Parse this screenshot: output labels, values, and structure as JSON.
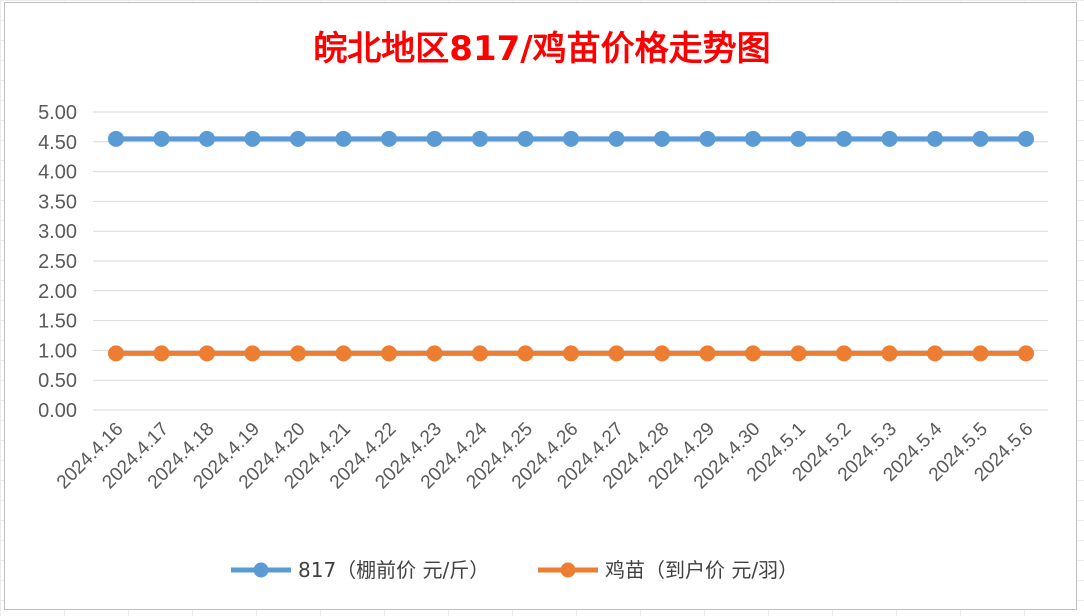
{
  "chart_data": {
    "type": "line",
    "title": "皖北地区817/鸡苗价格走势图",
    "categories": [
      "2024.4.16",
      "2024.4.17",
      "2024.4.18",
      "2024.4.19",
      "2024.4.20",
      "2024.4.21",
      "2024.4.22",
      "2024.4.23",
      "2024.4.24",
      "2024.4.25",
      "2024.4.26",
      "2024.4.27",
      "2024.4.28",
      "2024.4.29",
      "2024.4.30",
      "2024.5.1",
      "2024.5.2",
      "2024.5.3",
      "2024.5.4",
      "2024.5.5",
      "2024.5.6"
    ],
    "yticks": [
      "0.00",
      "0.50",
      "1.00",
      "1.50",
      "2.00",
      "2.50",
      "3.00",
      "3.50",
      "4.00",
      "4.50",
      "5.00"
    ],
    "ylim": [
      0,
      5
    ],
    "grid": true,
    "legend_position": "bottom",
    "series": [
      {
        "name": "817（棚前价 元/斤）",
        "color": "#5b9bd5",
        "values": [
          4.55,
          4.55,
          4.55,
          4.55,
          4.55,
          4.55,
          4.55,
          4.55,
          4.55,
          4.55,
          4.55,
          4.55,
          4.55,
          4.55,
          4.55,
          4.55,
          4.55,
          4.55,
          4.55,
          4.55,
          4.55
        ]
      },
      {
        "name": "鸡苗（到户价 元/羽）",
        "color": "#ed7d31",
        "values": [
          0.95,
          0.95,
          0.95,
          0.95,
          0.95,
          0.95,
          0.95,
          0.95,
          0.95,
          0.95,
          0.95,
          0.95,
          0.95,
          0.95,
          0.95,
          0.95,
          0.95,
          0.95,
          0.95,
          0.95,
          0.95
        ]
      }
    ]
  }
}
